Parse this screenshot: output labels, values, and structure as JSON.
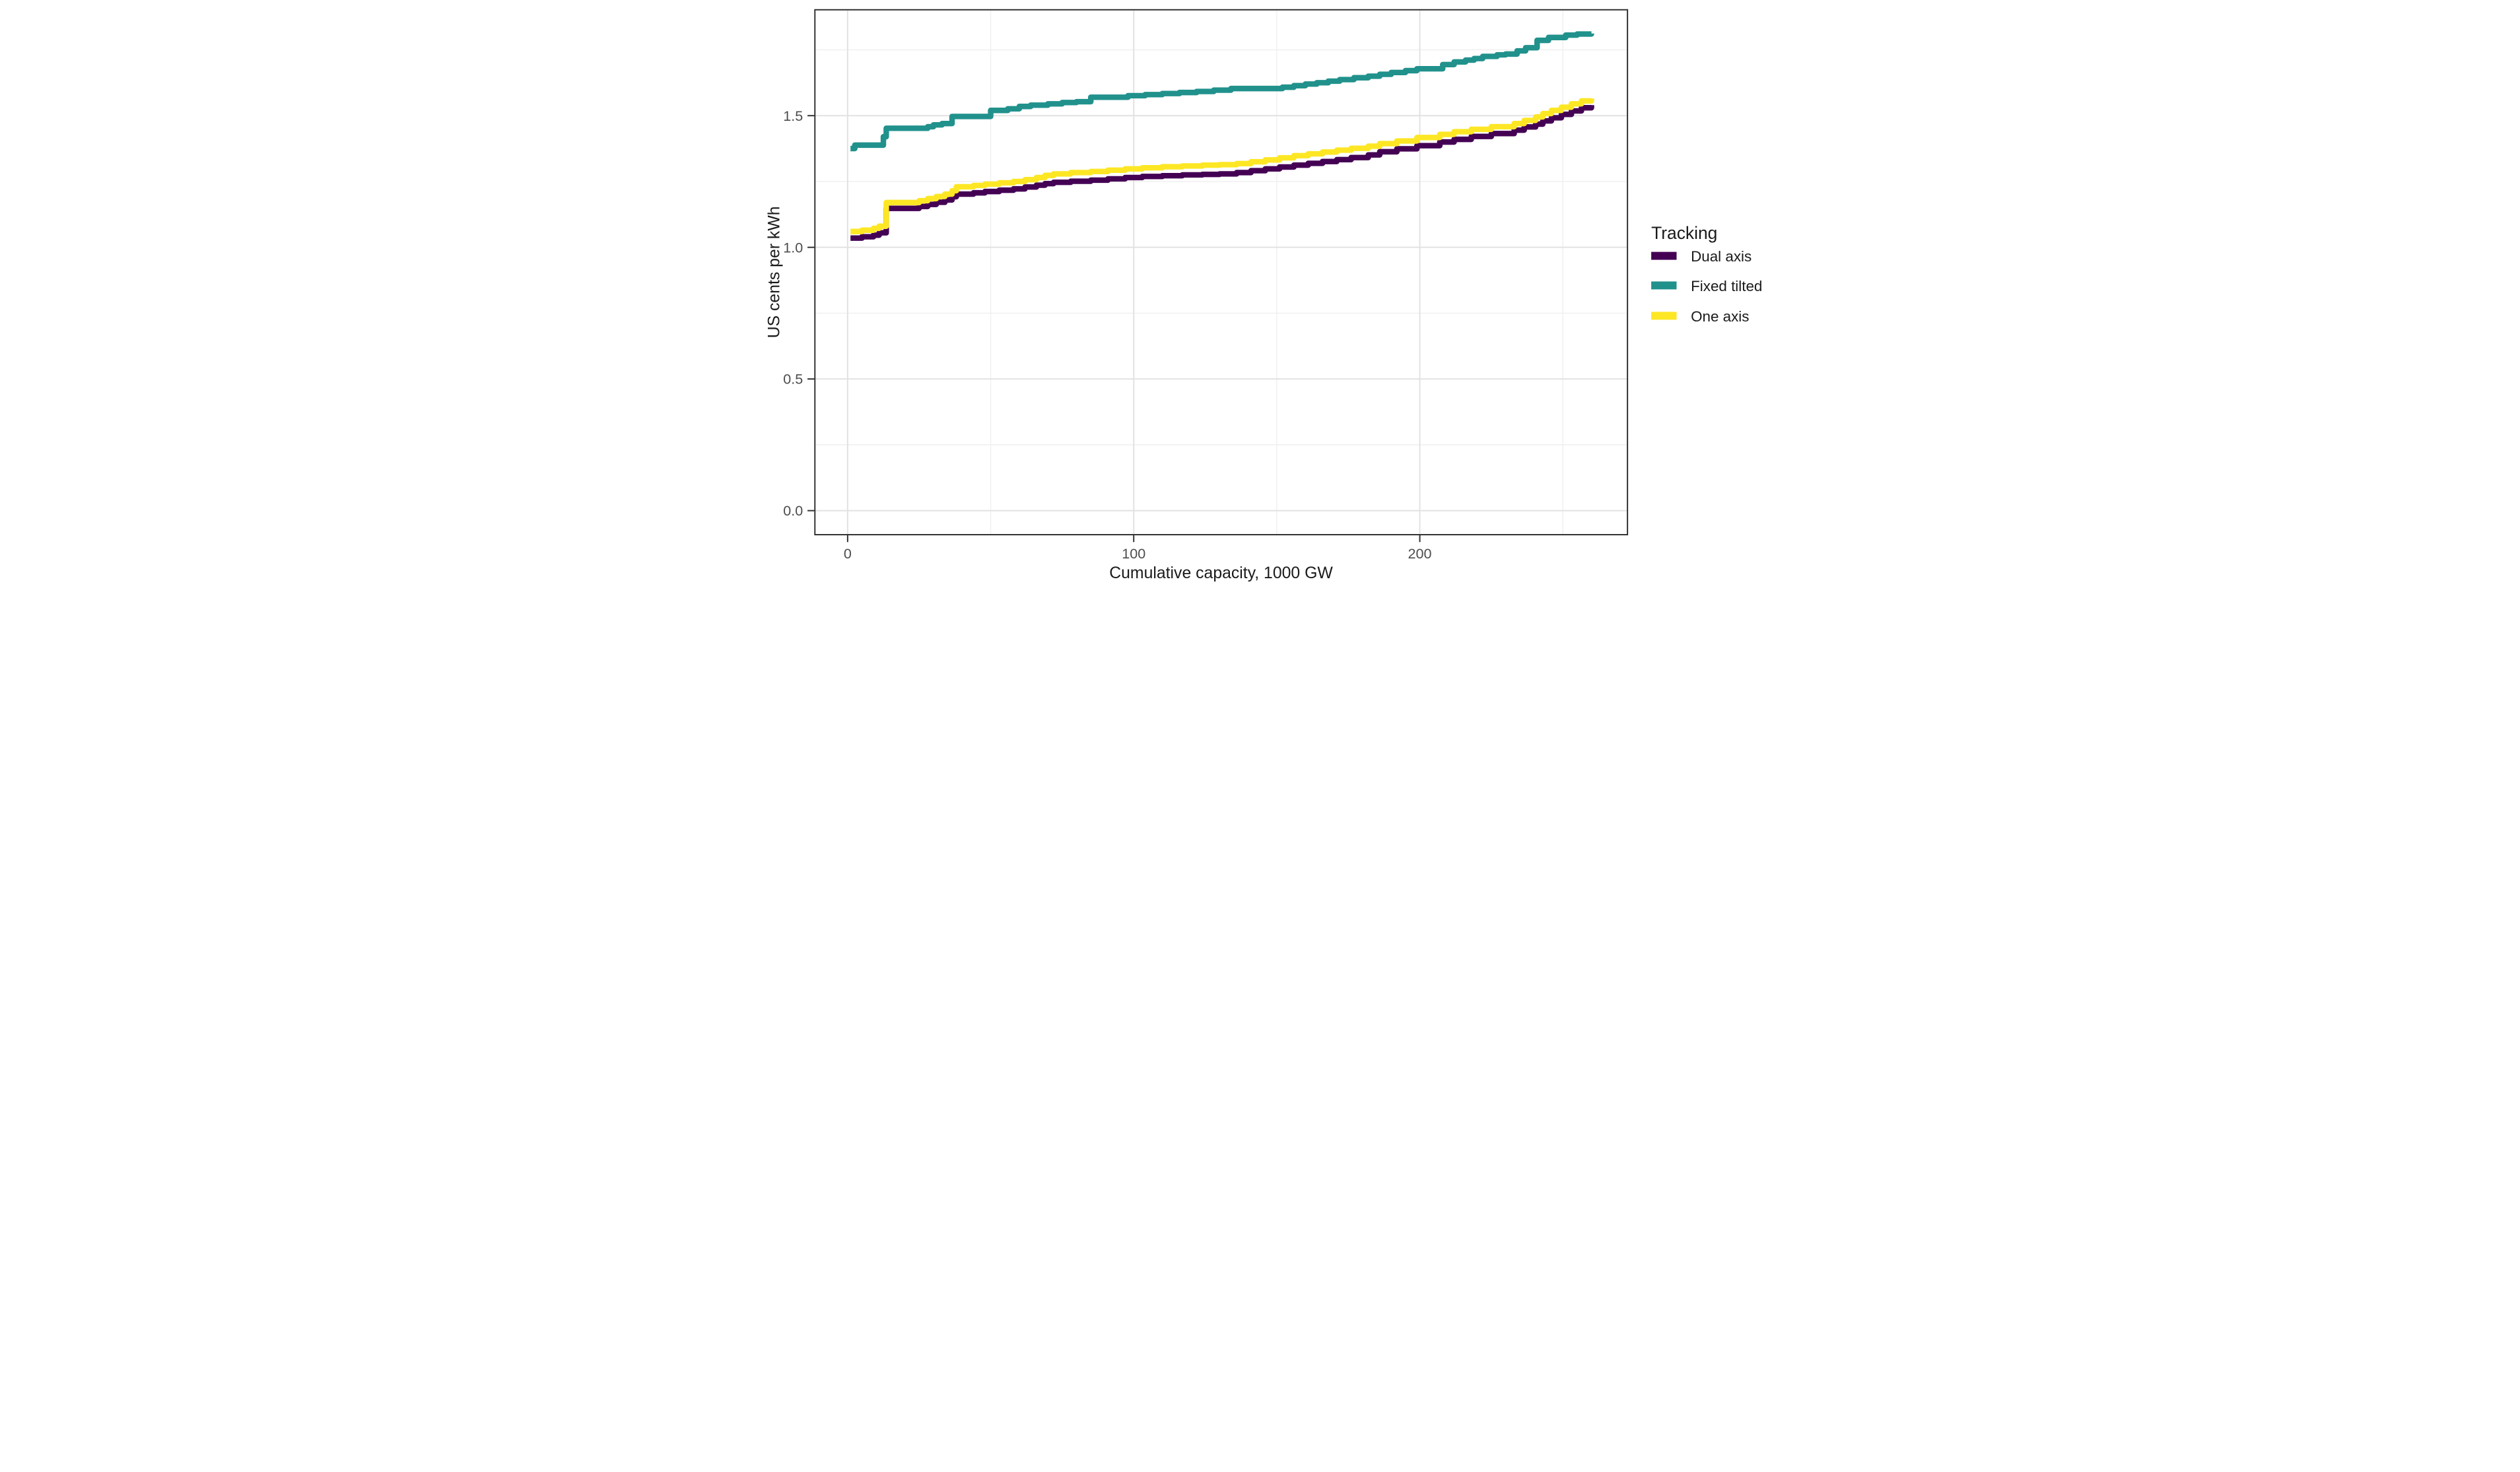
{
  "chart_data": {
    "type": "line",
    "subtype": "step",
    "title": "",
    "xlabel": "Cumulative capacity, 1000 GW",
    "ylabel": "US cents per kWh",
    "x_ticks": [
      {
        "value": 0,
        "label": "0"
      },
      {
        "value": 100,
        "label": "100"
      },
      {
        "value": 200,
        "label": "200"
      }
    ],
    "y_ticks": [
      {
        "value": 0,
        "label": "0.0"
      },
      {
        "value": 0.5,
        "label": "0.5"
      },
      {
        "value": 1,
        "label": "1.0"
      },
      {
        "value": 1.5,
        "label": "1.5"
      }
    ],
    "x_minor_ticks": [
      50,
      150,
      250
    ],
    "y_minor_ticks": [
      0.25,
      0.75,
      1.25,
      1.75
    ],
    "xlim": [
      -11.5,
      272.7
    ],
    "ylim": [
      -0.09,
      1.9
    ],
    "grid": "on",
    "legend": {
      "title": "Tracking",
      "position": "right",
      "entries": [
        {
          "label": "Dual axis",
          "color": "#440154"
        },
        {
          "label": "Fixed tilted",
          "color": "#21918c"
        },
        {
          "label": "One axis",
          "color": "#fde725"
        }
      ]
    },
    "series": [
      {
        "name": "Dual axis",
        "color": "#440154",
        "points": [
          [
            1,
            1.035
          ],
          [
            5,
            1.04
          ],
          [
            9,
            1.046
          ],
          [
            11,
            1.055
          ],
          [
            13.5,
            1.148
          ],
          [
            25,
            1.155
          ],
          [
            28,
            1.163
          ],
          [
            31,
            1.171
          ],
          [
            34,
            1.18
          ],
          [
            36.5,
            1.192
          ],
          [
            38,
            1.202
          ],
          [
            44,
            1.207
          ],
          [
            48,
            1.212
          ],
          [
            53,
            1.217
          ],
          [
            58,
            1.222
          ],
          [
            62,
            1.229
          ],
          [
            66,
            1.236
          ],
          [
            69,
            1.242
          ],
          [
            72,
            1.247
          ],
          [
            78,
            1.251
          ],
          [
            85,
            1.255
          ],
          [
            91,
            1.26
          ],
          [
            97,
            1.265
          ],
          [
            103,
            1.269
          ],
          [
            110,
            1.272
          ],
          [
            117,
            1.275
          ],
          [
            124,
            1.277
          ],
          [
            130,
            1.279
          ],
          [
            136,
            1.284
          ],
          [
            141,
            1.291
          ],
          [
            146,
            1.298
          ],
          [
            151,
            1.305
          ],
          [
            156,
            1.312
          ],
          [
            161,
            1.319
          ],
          [
            166,
            1.326
          ],
          [
            171,
            1.333
          ],
          [
            176,
            1.341
          ],
          [
            182,
            1.351
          ],
          [
            186,
            1.363
          ],
          [
            192,
            1.374
          ],
          [
            199,
            1.386
          ],
          [
            207,
            1.4
          ],
          [
            212,
            1.41
          ],
          [
            218,
            1.421
          ],
          [
            225,
            1.432
          ],
          [
            233,
            1.445
          ],
          [
            236.5,
            1.457
          ],
          [
            240.5,
            1.468
          ],
          [
            243,
            1.48
          ],
          [
            246,
            1.492
          ],
          [
            249.5,
            1.505
          ],
          [
            253,
            1.518
          ],
          [
            256.5,
            1.53
          ],
          [
            260,
            1.54
          ]
        ]
      },
      {
        "name": "Fixed tilted",
        "color": "#21918c",
        "points": [
          [
            1,
            1.375
          ],
          [
            2.5,
            1.388
          ],
          [
            12.5,
            1.42
          ],
          [
            13.5,
            1.452
          ],
          [
            28,
            1.458
          ],
          [
            30,
            1.465
          ],
          [
            33,
            1.47
          ],
          [
            36.5,
            1.497
          ],
          [
            50,
            1.52
          ],
          [
            56,
            1.526
          ],
          [
            60,
            1.535
          ],
          [
            64,
            1.54
          ],
          [
            70,
            1.545
          ],
          [
            75,
            1.55
          ],
          [
            80,
            1.553
          ],
          [
            85,
            1.57
          ],
          [
            98,
            1.576
          ],
          [
            104,
            1.58
          ],
          [
            110,
            1.584
          ],
          [
            116,
            1.588
          ],
          [
            122,
            1.592
          ],
          [
            128,
            1.597
          ],
          [
            134,
            1.603
          ],
          [
            152,
            1.608
          ],
          [
            156,
            1.614
          ],
          [
            160,
            1.62
          ],
          [
            164,
            1.625
          ],
          [
            168,
            1.631
          ],
          [
            172,
            1.637
          ],
          [
            177,
            1.644
          ],
          [
            182,
            1.65
          ],
          [
            186,
            1.657
          ],
          [
            190,
            1.664
          ],
          [
            195,
            1.671
          ],
          [
            199,
            1.678
          ],
          [
            208,
            1.694
          ],
          [
            212,
            1.704
          ],
          [
            216,
            1.711
          ],
          [
            219,
            1.717
          ],
          [
            222,
            1.725
          ],
          [
            227,
            1.731
          ],
          [
            230,
            1.734
          ],
          [
            234,
            1.746
          ],
          [
            237,
            1.758
          ],
          [
            241,
            1.786
          ],
          [
            245,
            1.797
          ],
          [
            251,
            1.806
          ],
          [
            255,
            1.81
          ],
          [
            260,
            1.812
          ]
        ]
      },
      {
        "name": "One axis",
        "color": "#fde725",
        "points": [
          [
            1,
            1.06
          ],
          [
            5,
            1.065
          ],
          [
            9,
            1.072
          ],
          [
            11,
            1.08
          ],
          [
            13.5,
            1.17
          ],
          [
            25,
            1.177
          ],
          [
            28,
            1.185
          ],
          [
            31,
            1.193
          ],
          [
            34,
            1.202
          ],
          [
            36.5,
            1.215
          ],
          [
            38,
            1.23
          ],
          [
            44,
            1.235
          ],
          [
            48,
            1.24
          ],
          [
            53,
            1.245
          ],
          [
            58,
            1.25
          ],
          [
            62,
            1.257
          ],
          [
            66,
            1.265
          ],
          [
            69,
            1.273
          ],
          [
            72,
            1.279
          ],
          [
            78,
            1.284
          ],
          [
            85,
            1.288
          ],
          [
            91,
            1.293
          ],
          [
            97,
            1.298
          ],
          [
            103,
            1.302
          ],
          [
            110,
            1.306
          ],
          [
            117,
            1.309
          ],
          [
            124,
            1.312
          ],
          [
            130,
            1.314
          ],
          [
            136,
            1.318
          ],
          [
            141,
            1.325
          ],
          [
            146,
            1.332
          ],
          [
            151,
            1.34
          ],
          [
            156,
            1.348
          ],
          [
            161,
            1.355
          ],
          [
            166,
            1.362
          ],
          [
            171,
            1.369
          ],
          [
            176,
            1.376
          ],
          [
            182,
            1.384
          ],
          [
            186,
            1.394
          ],
          [
            192,
            1.404
          ],
          [
            199,
            1.417
          ],
          [
            207,
            1.429
          ],
          [
            212,
            1.439
          ],
          [
            218,
            1.448
          ],
          [
            225,
            1.458
          ],
          [
            233,
            1.47
          ],
          [
            236.5,
            1.482
          ],
          [
            240.5,
            1.495
          ],
          [
            243,
            1.508
          ],
          [
            246,
            1.52
          ],
          [
            249.5,
            1.532
          ],
          [
            253,
            1.545
          ],
          [
            256.5,
            1.556
          ],
          [
            260,
            1.565
          ]
        ]
      }
    ],
    "colors": {
      "panel_border": "#333333",
      "grid_major": "#e2e2e2",
      "grid_minor": "#efefef",
      "tick_text": "#4d4d4d",
      "background": "#ffffff"
    }
  }
}
